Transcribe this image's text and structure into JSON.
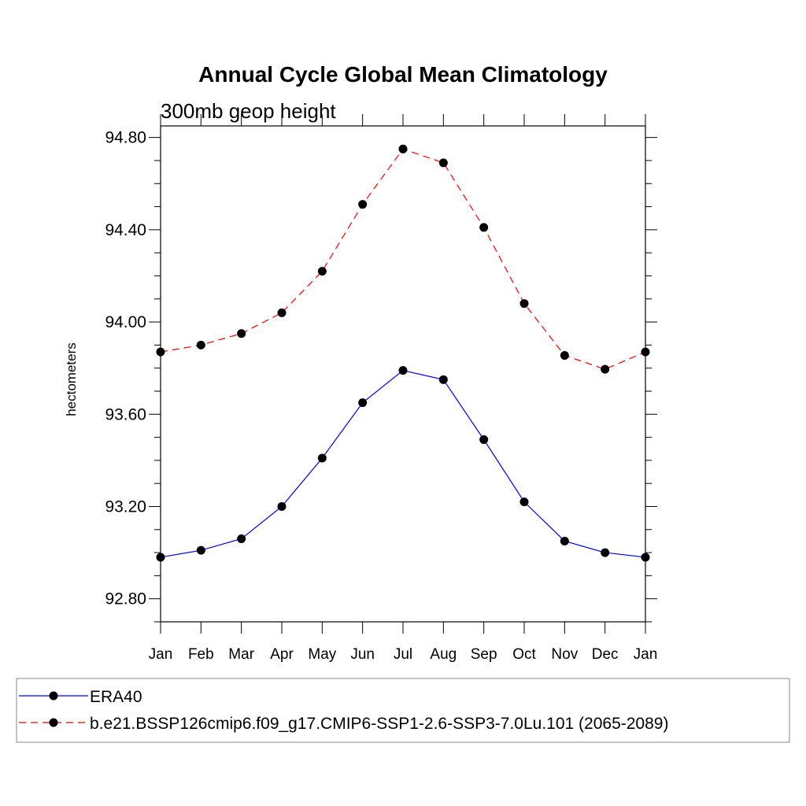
{
  "chart_data": {
    "type": "line",
    "title": "Annual Cycle Global Mean Climatology",
    "subtitle": "300mb geop height",
    "xlabel": "",
    "ylabel": "hectometers",
    "categories": [
      "Jan",
      "Feb",
      "Mar",
      "Apr",
      "May",
      "Jun",
      "Jul",
      "Aug",
      "Sep",
      "Oct",
      "Nov",
      "Dec",
      "Jan"
    ],
    "yticks": [
      "92.80",
      "93.20",
      "93.60",
      "94.00",
      "94.40",
      "94.80"
    ],
    "ylim": [
      92.7,
      94.85
    ],
    "grid": false,
    "legend_position": "bottom",
    "series": [
      {
        "name": "ERA40",
        "color": "#0000ff",
        "line_style": "solid",
        "marker": "filled-circle",
        "values": [
          92.98,
          93.01,
          93.06,
          93.2,
          93.41,
          93.65,
          93.79,
          93.75,
          93.49,
          93.22,
          93.05,
          93.0,
          92.98
        ]
      },
      {
        "name": "b.e21.BSSP126cmip6.f09_g17.CMIP6-SSP1-2.6-SSP3-7.0Lu.101 (2065-2089)",
        "color": "#ff0000",
        "line_style": "dashed",
        "marker": "filled-circle",
        "values": [
          93.87,
          93.9,
          93.95,
          94.04,
          94.22,
          94.51,
          94.75,
          94.69,
          94.41,
          94.08,
          93.855,
          93.795,
          93.87
        ]
      }
    ]
  }
}
